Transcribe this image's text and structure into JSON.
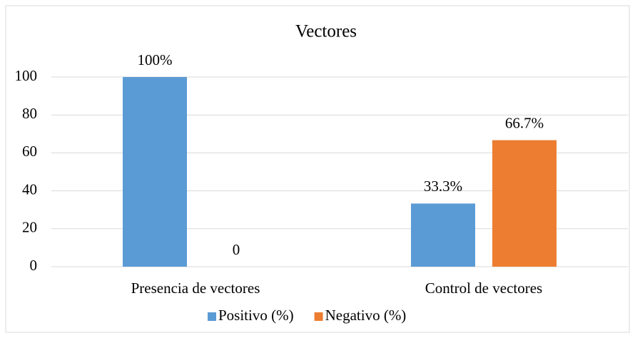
{
  "chart_data": {
    "type": "bar",
    "title": "Vectores",
    "categories": [
      "Presencia de vectores",
      "Control de vectores"
    ],
    "series": [
      {
        "name": "Positivo (%)",
        "color": "#5b9bd5",
        "values": [
          100,
          33.3
        ],
        "value_labels": [
          "100%",
          "33.3%"
        ]
      },
      {
        "name": "Negativo (%)",
        "color": "#ed7d31",
        "values": [
          0,
          66.7
        ],
        "value_labels": [
          "0",
          "66.7%"
        ]
      }
    ],
    "ylim": [
      0,
      100
    ],
    "yticks": [
      0,
      20,
      40,
      60,
      80,
      100
    ],
    "grid": true,
    "legend": "bottom"
  }
}
